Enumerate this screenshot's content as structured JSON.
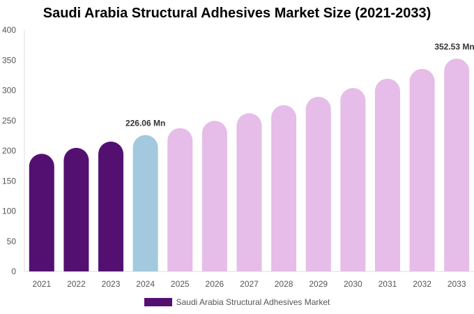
{
  "chart_data": {
    "type": "bar",
    "title": "Saudi Arabia Structural Adhesives Market Size (2021-2033)",
    "categories": [
      "2021",
      "2022",
      "2023",
      "2024",
      "2025",
      "2026",
      "2027",
      "2028",
      "2029",
      "2030",
      "2031",
      "2032",
      "2033"
    ],
    "series": [
      {
        "name": "Saudi Arabia Structural Adhesives Market",
        "values": [
          194.9,
          204.8,
          215.2,
          226.06,
          237.5,
          249.5,
          262.1,
          275.4,
          289.3,
          303.9,
          319.3,
          335.5,
          352.53
        ]
      }
    ],
    "data_labels": [
      {
        "category": "2024",
        "text": "226.06 Mn"
      },
      {
        "category": "2033",
        "text": "352.53 Mn"
      }
    ],
    "ylim": [
      0,
      400
    ],
    "yticks": [
      0,
      50,
      100,
      150,
      200,
      250,
      300,
      350,
      400
    ],
    "grid": false,
    "legend_position": "bottom",
    "colors": {
      "historical": "#541071",
      "base_year": "#a3c9de",
      "forecast": "#e6bce8"
    }
  }
}
